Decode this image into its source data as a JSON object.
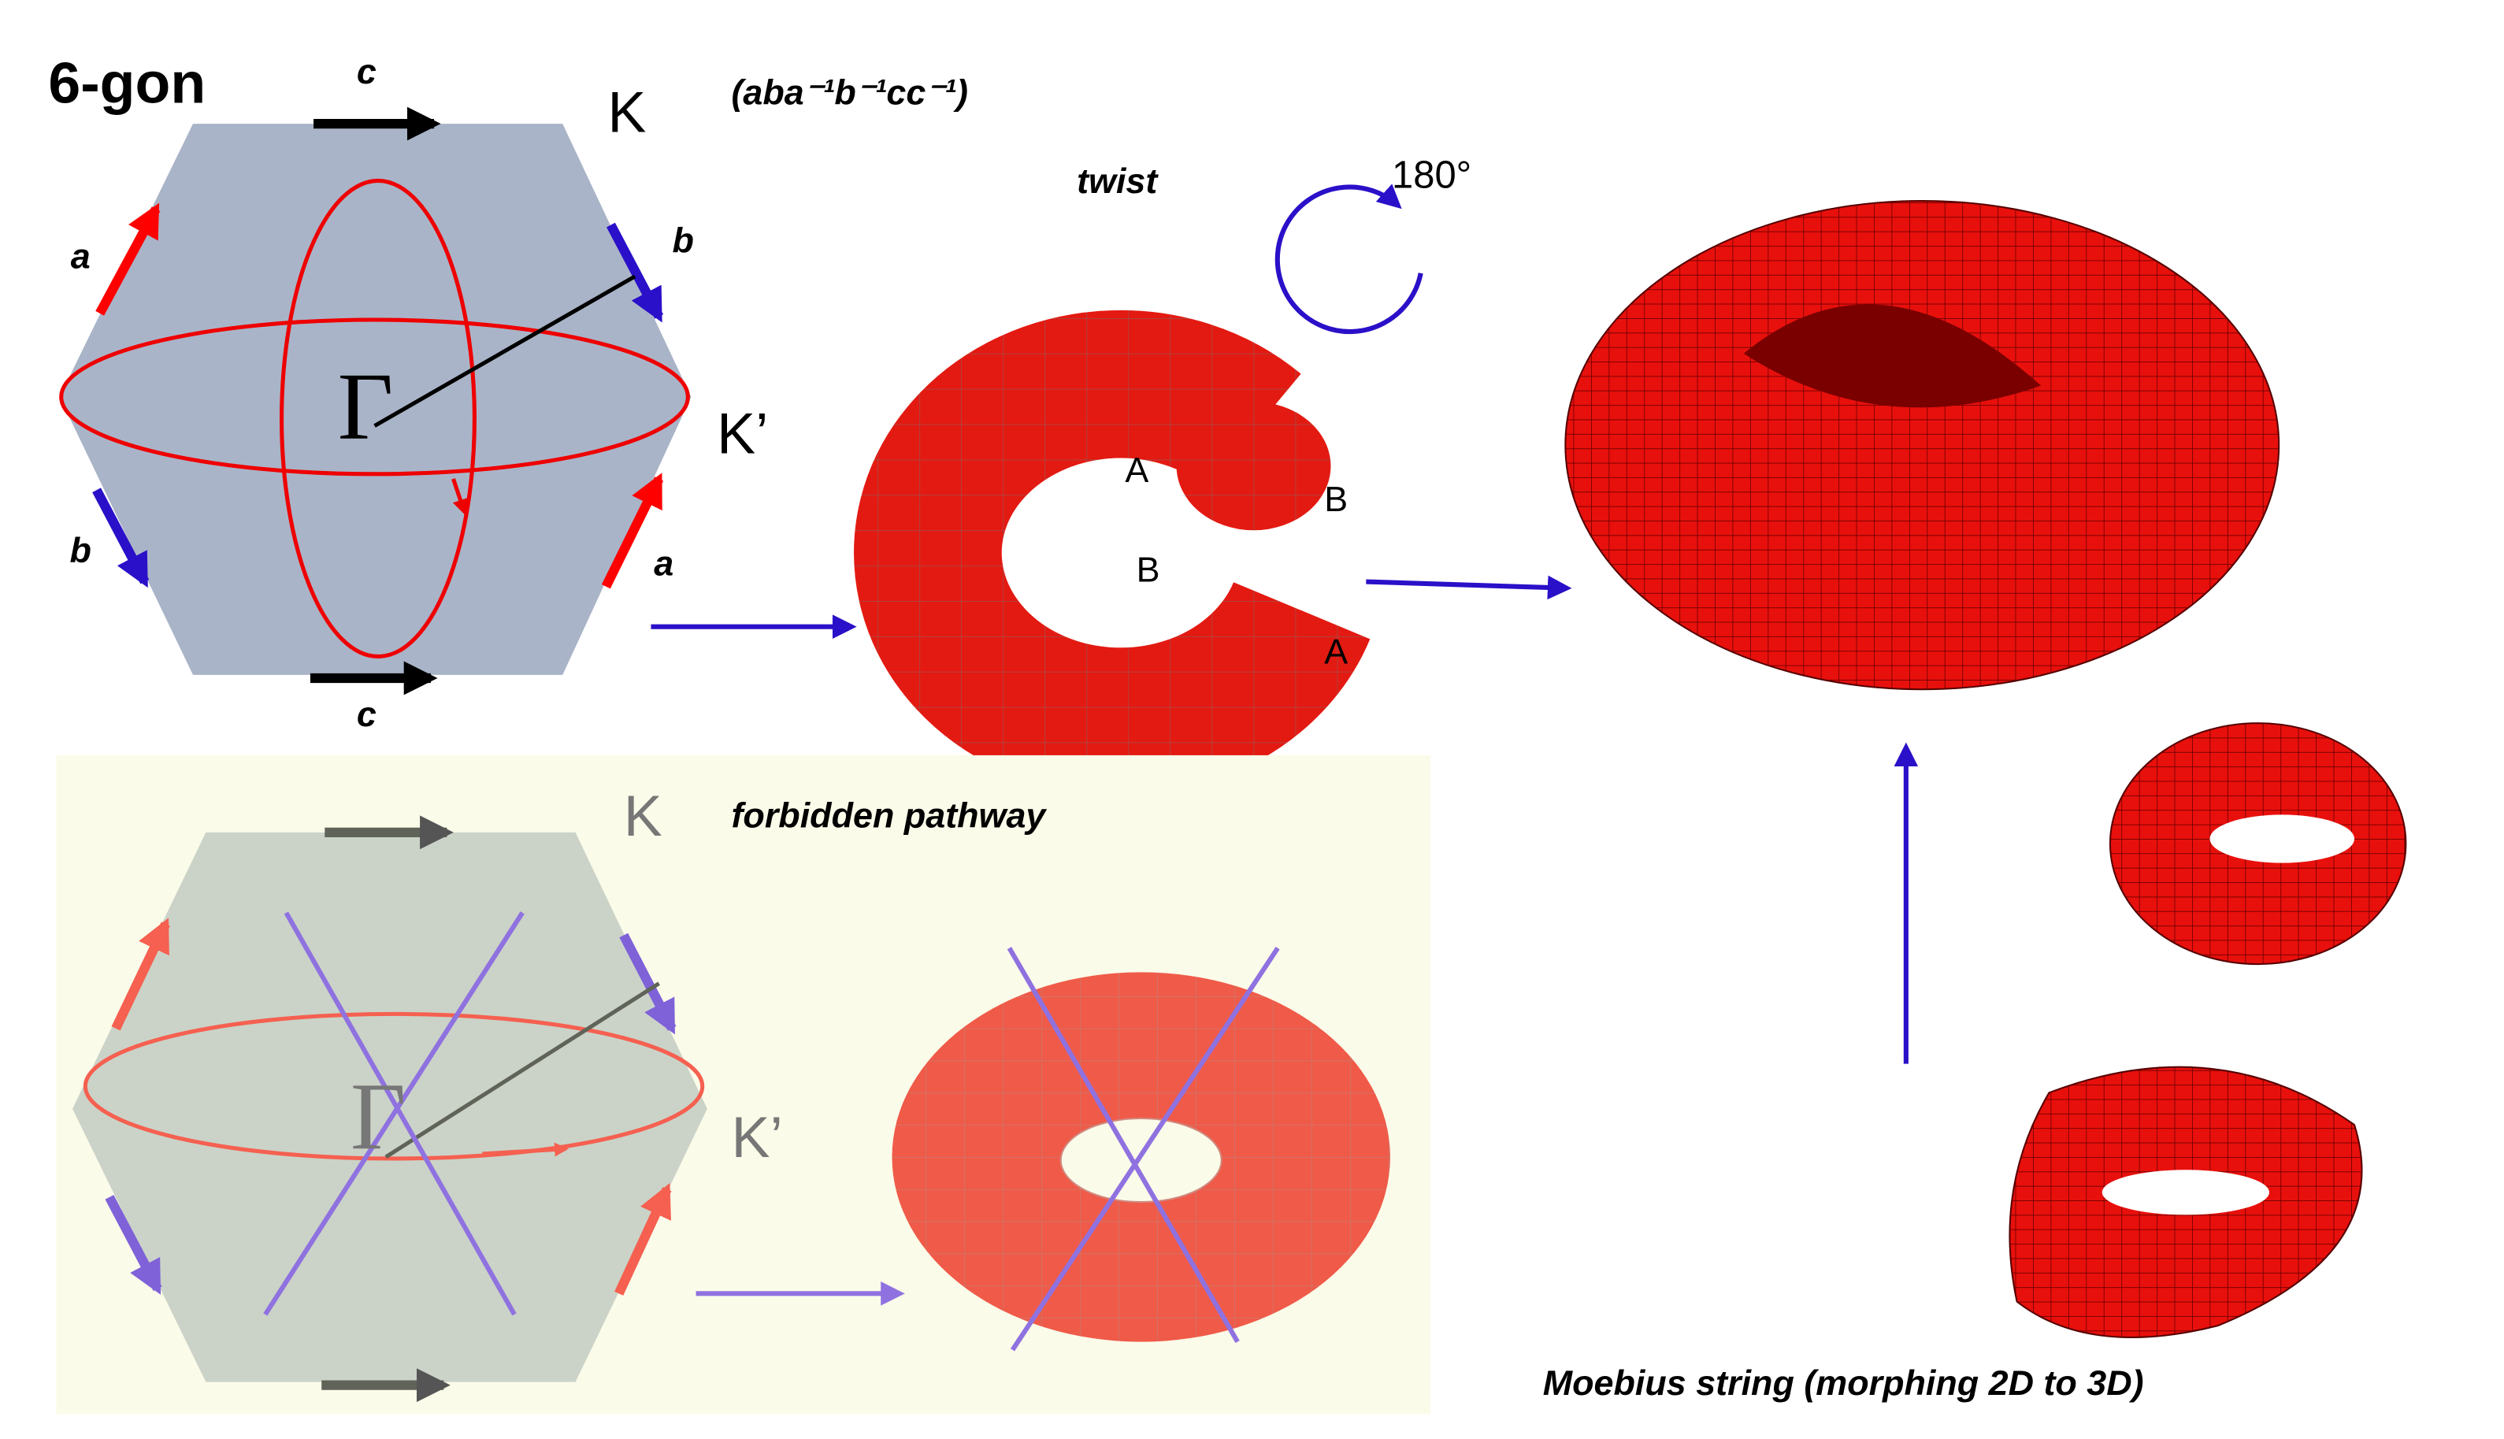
{
  "hexagon": {
    "title": "6-gon",
    "edge_labels": [
      "c",
      "c",
      "a",
      "a",
      "b",
      "b"
    ],
    "K": "K",
    "K_prime": "K’",
    "gamma": "Γ"
  },
  "twist_panel": {
    "word": "(aba⁻¹b⁻¹cc⁻¹)",
    "twist": "twist",
    "angle": "180°",
    "points": [
      "A",
      "B",
      "B",
      "A"
    ]
  },
  "forbidden_panel": {
    "K": "K",
    "title": "forbidden pathway",
    "K_prime": "K’",
    "gamma": "Γ"
  },
  "moebius_caption": "Moebius string (morphing 2D to 3D)"
}
